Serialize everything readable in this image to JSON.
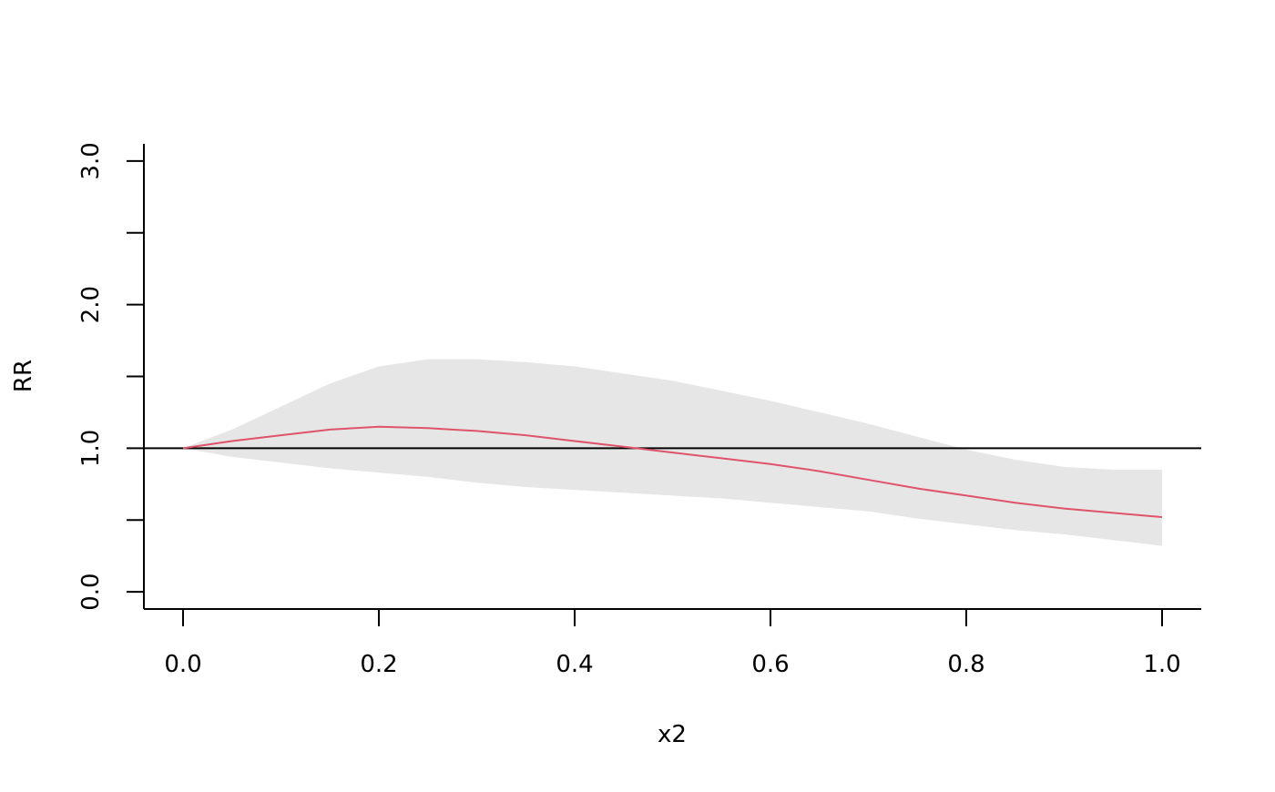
{
  "chart_data": {
    "type": "line",
    "x_label": "x2",
    "y_label": "RR",
    "x": [
      0,
      0.05,
      0.1,
      0.15,
      0.2,
      0.25,
      0.3,
      0.35,
      0.4,
      0.45,
      0.5,
      0.55,
      0.6,
      0.65,
      0.7,
      0.75,
      0.8,
      0.85,
      0.9,
      0.95,
      1.0
    ],
    "fit": {
      "color": "#DF536B",
      "values": [
        1.0,
        1.05,
        1.09,
        1.13,
        1.15,
        1.14,
        1.12,
        1.09,
        1.05,
        1.01,
        0.97,
        0.93,
        0.89,
        0.84,
        0.78,
        0.72,
        0.67,
        0.62,
        0.58,
        0.55,
        0.52
      ]
    },
    "band": {
      "color": "#e6e6e6",
      "upper": [
        1.0,
        1.13,
        1.29,
        1.45,
        1.57,
        1.62,
        1.62,
        1.6,
        1.57,
        1.52,
        1.47,
        1.4,
        1.33,
        1.25,
        1.17,
        1.08,
        0.99,
        0.92,
        0.87,
        0.85,
        0.85
      ],
      "lower": [
        1.0,
        0.94,
        0.9,
        0.86,
        0.83,
        0.8,
        0.76,
        0.73,
        0.71,
        0.69,
        0.67,
        0.65,
        0.62,
        0.59,
        0.56,
        0.51,
        0.47,
        0.43,
        0.4,
        0.36,
        0.32
      ]
    },
    "reference_line": 1,
    "xlim": [
      -0.04,
      1.04
    ],
    "ylim": [
      -0.12,
      3.12
    ],
    "xticks": [
      {
        "value": 0,
        "label": "0.0"
      },
      0.2,
      0.4,
      0.6,
      0.8,
      {
        "value": 1,
        "label": "1.0"
      }
    ],
    "yticks": [
      {
        "value": 0,
        "label": "0.0"
      },
      {
        "value": 1,
        "label": "1.0"
      },
      {
        "value": 2,
        "label": "2.0"
      },
      {
        "value": 3,
        "label": "3.0"
      }
    ],
    "yticks_minor": [
      0.5,
      1.5,
      2.5
    ],
    "grid": false
  }
}
